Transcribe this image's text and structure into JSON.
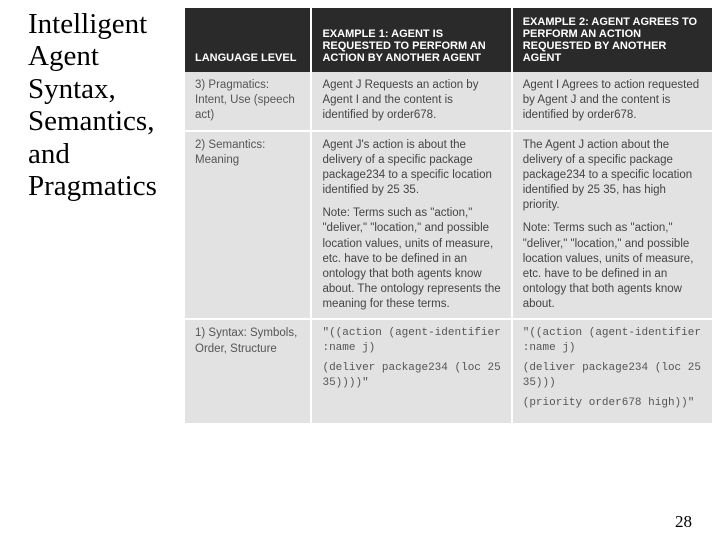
{
  "title": "Intelligent Agent Syntax, Semantics, and Pragmatics",
  "pageNumber": "28",
  "headers": {
    "lang": "LANGUAGE LEVEL",
    "ex1": "EXAMPLE 1:\nAGENT IS REQUESTED TO PERFORM AN ACTION BY ANOTHER AGENT",
    "ex2": "EXAMPLE 2:\nAGENT AGREES TO PERFORM AN ACTION REQUESTED BY ANOTHER AGENT"
  },
  "rows": [
    {
      "level": "3) Pragmatics: Intent, Use (speech act)",
      "ex1": "Agent J Requests an action by Agent I and the content is identified by order678.",
      "ex2": "Agent I Agrees to action requested by Agent J and the content is identified by order678."
    },
    {
      "level": "2) Semantics: Meaning",
      "ex1": "Agent J's action is about the delivery of a specific package package234 to a specific location identified by 25 35.",
      "ex1_note": "Note: Terms such as \"action,\" \"deliver,\" \"location,\" and possible location values, units of measure, etc. have to be defined in an ontology that both agents know about. The ontology represents the meaning for these terms.",
      "ex2": "The Agent J action about the delivery of a specific package package234 to a specific location identified by 25 35, has high priority.",
      "ex2_note": "Note: Terms such as \"action,\" \"deliver,\" \"location,\" and possible location values, units of measure, etc. have to be defined in an ontology that both agents know about."
    },
    {
      "level": "1) Syntax: Symbols, Order, Structure",
      "ex1_code1": "\"((action (agent-identifier :name j)",
      "ex1_code2": "(deliver package234 (loc 25 35))))\"",
      "ex2_code1": "\"((action (agent-identifier :name j)",
      "ex2_code2": "(deliver package234 (loc 25 35)))",
      "ex2_code3": "(priority order678 high))\""
    }
  ],
  "colors": {
    "headerBg": "#2a2a2a",
    "headerText": "#ffffff",
    "cellBg": "#e2e2e2",
    "cellText": "#444444"
  }
}
